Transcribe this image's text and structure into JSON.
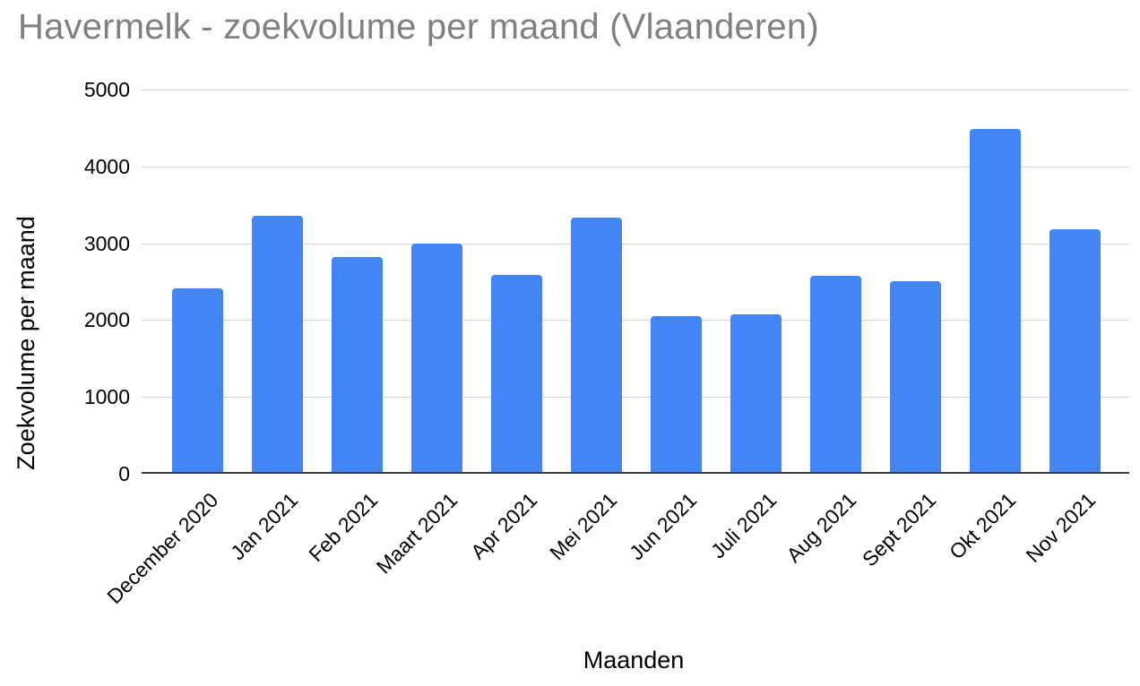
{
  "chart_data": {
    "type": "bar",
    "title": "Havermelk - zoekvolume per maand (Vlaanderen)",
    "xlabel": "Maanden",
    "ylabel": "Zoekvolume per maand",
    "categories": [
      "December 2020",
      "Jan 2021",
      "Feb 2021",
      "Maart 2021",
      "Apr 2021",
      "Mei 2021",
      "Jun 2021",
      "Juli 2021",
      "Aug 2021",
      "Sept 2021",
      "Okt 2021",
      "Nov 2021"
    ],
    "values": [
      2410,
      3360,
      2820,
      3000,
      2590,
      3330,
      2050,
      2070,
      2580,
      2510,
      4490,
      3180
    ],
    "ylim": [
      0,
      5000
    ],
    "y_ticks": [
      0,
      1000,
      2000,
      3000,
      4000,
      5000
    ],
    "grid": true,
    "legend": "none",
    "colors": {
      "bar": "#4285f4",
      "gridline": "#d6d6d6",
      "baseline": "#3b3b3b",
      "title_text": "#808080",
      "axis_text": "#000000"
    }
  }
}
